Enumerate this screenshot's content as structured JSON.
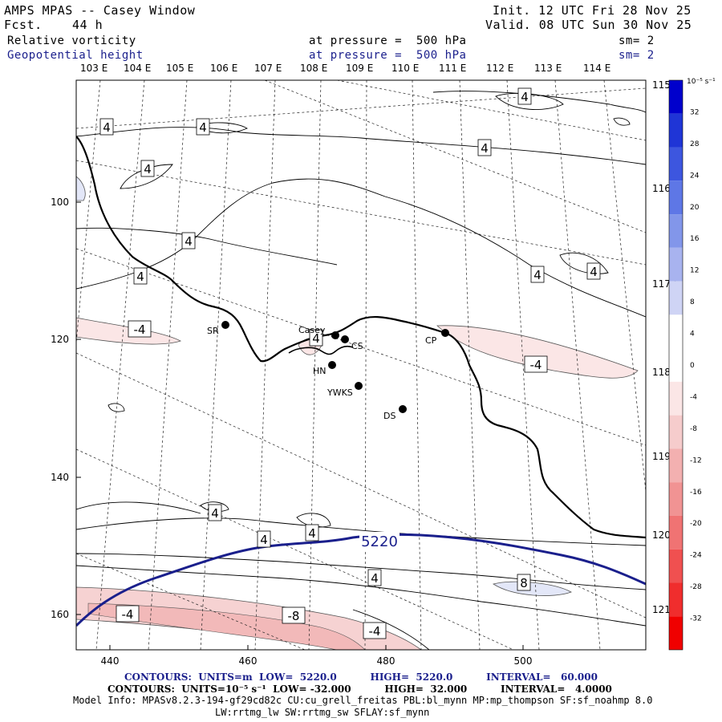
{
  "header": {
    "title": "AMPS MPAS -- Casey Window",
    "forecast_label": "Fcst.",
    "forecast_hours": "44 h",
    "init": "Init. 12 UTC Fri 28 Nov 25",
    "valid": "Valid. 08 UTC Sun 30 Nov 25",
    "field1_name": "Relative vorticity",
    "field1_pressure": "at pressure =  500 hPa",
    "field1_sm": "sm= 2",
    "field2_name": "Geopotential height",
    "field2_pressure": "at pressure =  500 hPa",
    "field2_sm": "sm= 2"
  },
  "top_lon_labels": [
    "103 E",
    "104 E",
    "105 E",
    "106 E",
    "107 E",
    "108 E",
    "109 E",
    "110 E",
    "111 E",
    "112 E",
    "113 E",
    "114 E"
  ],
  "right_lon_labels": [
    "115 E",
    "116 E",
    "117 E",
    "118 E",
    "119 E",
    "120 E",
    "121 E"
  ],
  "x_ticks": [
    "440",
    "460",
    "480",
    "500"
  ],
  "y_ticks": [
    "100",
    "120",
    "140",
    "160"
  ],
  "stations": [
    {
      "name": "SR"
    },
    {
      "name": "Casey"
    },
    {
      "name": "CS"
    },
    {
      "name": "CP"
    },
    {
      "name": "HN"
    },
    {
      "name": "YWKS"
    },
    {
      "name": "DS"
    }
  ],
  "contour_labels": {
    "vort_pos": "4",
    "vort_neg": "-4",
    "vort_neg8": "-8",
    "vort_pos8": "8",
    "height": "5220"
  },
  "colorbar": {
    "unit": "10⁻⁵ s⁻¹",
    "levels": [
      "32",
      "28",
      "24",
      "20",
      "16",
      "12",
      "8",
      "4",
      "0",
      "-4",
      "-8",
      "-12",
      "-16",
      "-20",
      "-24",
      "-28",
      "-32"
    ],
    "colors": [
      "#0000cc",
      "#1f35d6",
      "#3d56df",
      "#5e77e6",
      "#8296ea",
      "#a8b3ef",
      "#cfd4f5",
      "#ffffff",
      "#ffffff",
      "#fbe6e6",
      "#f6cccc",
      "#f3b0b0",
      "#f19393",
      "#f07373",
      "#f05050",
      "#f02d2d",
      "#f00000"
    ]
  },
  "footer": {
    "contours_height": "CONTOURS:  UNITS=m  LOW=  5220.0          HIGH=  5220.0          INTERVAL=   60.000",
    "contours_vort": "CONTOURS:  UNITS=10⁻⁵ s⁻¹  LOW= -32.000          HIGH=  32.000          INTERVAL=   4.0000",
    "model_info_1": "Model Info: MPASv8.2.3-194-gf29cd82c CU:cu_grell_freitas PBL:bl_mynn MP:mp_thompson SF:sf_noahmp 8.0",
    "model_info_2": "LW:rrtmg_lw SW:rrtmg_sw SFLAY:sf_mynn"
  },
  "colors": {
    "height_contour": "#1a1f8c",
    "neg_vort_fill": "#fbe6e6",
    "pos_vort_fill": "#e3e7f8"
  }
}
